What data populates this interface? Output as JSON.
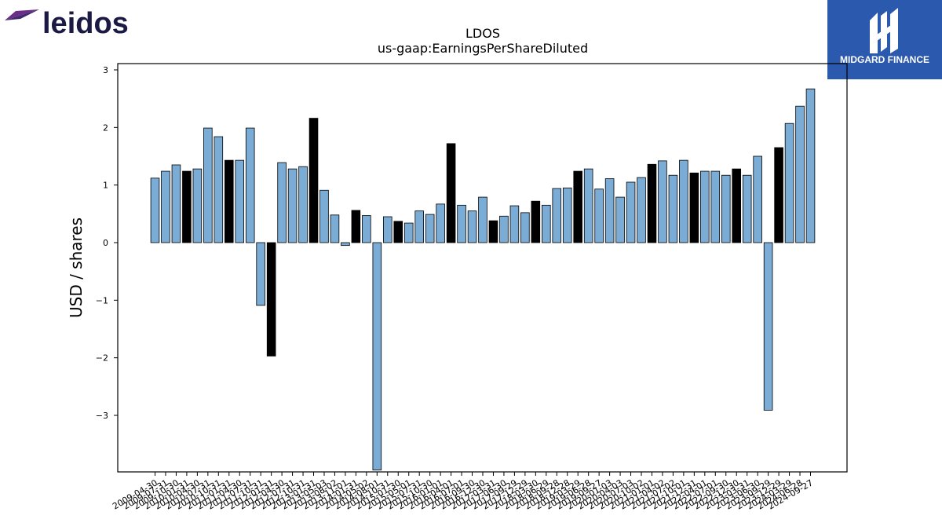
{
  "logos": {
    "left": "leidos",
    "right": "MIDGARD FINANCE"
  },
  "colors": {
    "bar_default": "#7bacd5",
    "bar_highlight": "#000000",
    "bar_edge": "#000000",
    "leidos_text": "#1b1a45",
    "leidos_mark": "#6b2d86",
    "midgard_bg": "#2b59ad"
  },
  "chart_data": {
    "type": "bar",
    "title": "LDOS",
    "subtitle": "us-gaap:EarningsPerShareDiluted",
    "xlabel": "",
    "ylabel": "USD / shares",
    "ylim": [
      -3.95,
      3.1
    ],
    "yticks": [
      -3,
      -2,
      -1,
      0,
      1,
      2,
      3
    ],
    "ytick_labels": [
      "−3",
      "−2",
      "−1",
      "0",
      "1",
      "2",
      "3"
    ],
    "grid": false,
    "legend": null,
    "x_tick_labels": [
      "2009-04-30",
      "2009-07-31",
      "2009-10-30",
      "2010-01-31",
      "2010-04-30",
      "2010-07-31",
      "2010-10-31",
      "2011-01-31",
      "2011-04-30",
      "2011-07-31",
      "2011-10-31",
      "2012-01-31",
      "2012-04-30",
      "2012-07-31",
      "2012-10-31",
      "2013-01-31",
      "2013-05-03",
      "2013-08-02",
      "2013-11-01",
      "2014-01-31",
      "2014-05-02",
      "2014-08-01",
      "2014-10-31",
      "2015-01-30",
      "2015-05-01",
      "2015-07-31",
      "2015-10-30",
      "2016-01-01",
      "2016-04-01",
      "2016-07-01",
      "2016-09-30",
      "2016-12-30",
      "2017-03-31",
      "2017-06-30",
      "2017-09-29",
      "2017-12-29",
      "2018-03-30",
      "2018-06-29",
      "2018-09-28",
      "2018-12-28",
      "2019-03-29",
      "2019-06-28",
      "2019-09-27",
      "2020-01-03",
      "2020-04-03",
      "2020-07-03",
      "2020-10-02",
      "2021-01-01",
      "2021-04-02",
      "2021-07-02",
      "2021-10-01",
      "2021-12-31",
      "2022-04-01",
      "2022-07-01",
      "2022-09-30",
      "2022-12-30",
      "2023-03-31",
      "2023-06-30",
      "2023-09-29",
      "2023-12-29",
      "2024-03-29",
      "2024-06-28",
      "2024-09-27"
    ],
    "values": [
      1.12,
      1.24,
      1.35,
      1.24,
      1.28,
      1.99,
      1.84,
      1.43,
      1.43,
      1.99,
      -1.09,
      -1.97,
      1.39,
      1.28,
      1.32,
      2.16,
      0.91,
      0.48,
      -0.05,
      0.56,
      0.47,
      -3.95,
      0.45,
      0.37,
      0.34,
      0.55,
      0.49,
      0.67,
      1.72,
      0.65,
      0.55,
      0.79,
      0.38,
      0.46,
      0.64,
      0.52,
      0.72,
      0.65,
      0.94,
      0.95,
      1.24,
      1.28,
      0.93,
      1.11,
      0.79,
      1.05,
      1.13,
      1.36,
      1.42,
      1.17,
      1.43,
      1.21,
      1.24,
      1.24,
      1.17,
      1.28,
      1.17,
      1.5,
      -2.91,
      1.65,
      2.07,
      2.37,
      2.67
    ],
    "highlight": [
      false,
      false,
      false,
      true,
      false,
      false,
      false,
      true,
      false,
      false,
      false,
      true,
      false,
      false,
      false,
      true,
      false,
      false,
      false,
      true,
      false,
      false,
      false,
      true,
      false,
      false,
      false,
      false,
      true,
      false,
      false,
      false,
      true,
      false,
      false,
      false,
      true,
      false,
      false,
      false,
      true,
      false,
      false,
      false,
      false,
      false,
      false,
      true,
      false,
      false,
      false,
      true,
      false,
      false,
      false,
      true,
      false,
      false,
      false,
      true,
      false,
      false,
      false
    ]
  }
}
